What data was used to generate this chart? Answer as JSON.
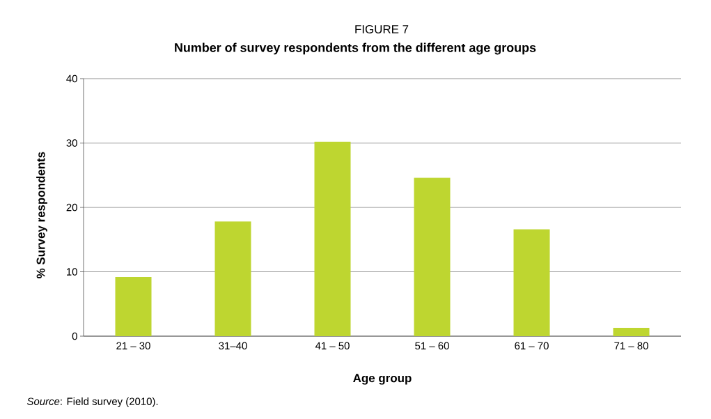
{
  "chart_data": {
    "type": "bar",
    "title": "FIGURE 7",
    "subtitle": "Number of survey respondents from the different age groups",
    "xlabel": "Age group",
    "ylabel": "% Survey respondents",
    "categories": [
      "21 – 30",
      "31–40",
      "41 – 50",
      "51 – 60",
      "61 – 70",
      "71 – 80"
    ],
    "values": [
      9.2,
      17.8,
      30.2,
      24.6,
      16.6,
      1.3
    ],
    "color": "#bed630",
    "ylim": [
      0,
      40
    ],
    "yticks": [
      0,
      10,
      20,
      30,
      40
    ],
    "grid": "y",
    "annotations": [
      "*Source*: Field survey (2010)."
    ]
  }
}
